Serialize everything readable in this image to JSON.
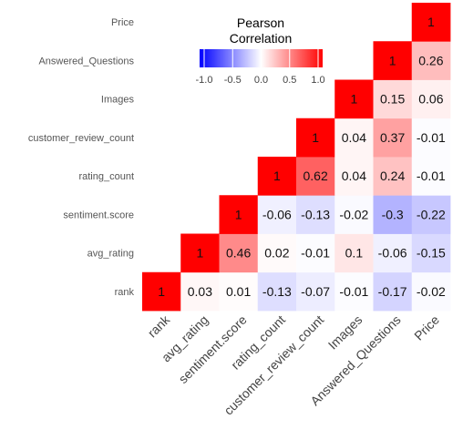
{
  "chart_data": {
    "type": "heatmap",
    "variables": [
      "rank",
      "avg_rating",
      "sentiment.score",
      "rating_count",
      "customer_review_count",
      "Images",
      "Answered_Questions",
      "Price"
    ],
    "matrix": [
      [
        1,
        0.03,
        0.01,
        -0.13,
        -0.07,
        -0.01,
        -0.17,
        -0.02
      ],
      [
        0.03,
        1,
        0.46,
        0.02,
        -0.01,
        0.1,
        -0.06,
        -0.15
      ],
      [
        0.01,
        0.46,
        1,
        -0.06,
        -0.13,
        -0.02,
        -0.3,
        -0.22
      ],
      [
        -0.13,
        0.02,
        -0.06,
        1,
        0.62,
        0.04,
        0.24,
        -0.01
      ],
      [
        -0.07,
        -0.01,
        -0.13,
        0.62,
        1,
        0.04,
        0.37,
        -0.01
      ],
      [
        -0.01,
        0.1,
        -0.02,
        0.04,
        0.04,
        1,
        0.15,
        0.06
      ],
      [
        -0.17,
        -0.06,
        -0.3,
        0.24,
        0.37,
        0.15,
        1,
        0.26
      ],
      [
        -0.02,
        -0.15,
        -0.22,
        -0.01,
        -0.01,
        0.06,
        0.26,
        1
      ]
    ],
    "triangle": "lower",
    "legend": {
      "title_lines": [
        "Pearson",
        "Correlation"
      ],
      "range": [
        -1,
        1
      ],
      "ticks": [
        -1,
        -0.5,
        0,
        0.5,
        1
      ],
      "tick_labels": [
        "-1.0",
        "-0.5",
        "0.0",
        "0.5",
        "1.0"
      ],
      "placement": "top-center"
    },
    "colors": {
      "low": "#0000ff",
      "mid": "#ffffff",
      "high": "#ff0000"
    }
  }
}
